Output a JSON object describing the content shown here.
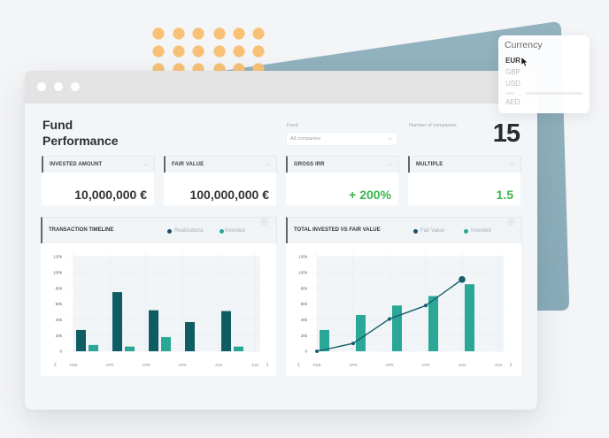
{
  "window": {
    "control_dots": 3
  },
  "header": {
    "title_line1": "Fund",
    "title_line2": "Performance"
  },
  "fund_filter": {
    "label": "Fund",
    "value": "All companies"
  },
  "companies": {
    "label": "Number of companies",
    "count": "15"
  },
  "kpis": [
    {
      "label": "INVESTED AMOUNT",
      "value": "10,000,000 €",
      "value_color": "#333333"
    },
    {
      "label": "FAIR VALUE",
      "value": "100,000,000 €",
      "value_color": "#333333"
    },
    {
      "label": "GROSS IRR",
      "value": "+ 200%",
      "value_color": "#3bb54a"
    },
    {
      "label": "MULTIPLE",
      "value": "1.5",
      "value_color": "#3bb54a"
    }
  ],
  "currency_menu": {
    "title": "Currency",
    "options": [
      {
        "label": "EUR",
        "selected": true
      },
      {
        "label": "GBP",
        "selected": false
      },
      {
        "label": "USD",
        "selected": false
      },
      {
        "label": "AED",
        "selected": false
      }
    ]
  },
  "icons": {
    "window_controls": "circle-dots",
    "kpi_dropdown": "chevron-down-icon",
    "select_dropdown": "chevron-down-icon",
    "chart_settings": "gear-icon",
    "chart_prev": "chevron-left-icon",
    "chart_next": "chevron-right-icon",
    "cursor": "mouse-pointer-icon"
  },
  "colors": {
    "accent_dark_teal": "#0d5d63",
    "accent_teal": "#2ba797",
    "positive_green": "#3bb54a",
    "decor_orange": "#f8c176",
    "decor_blue": "#8fb0bd"
  },
  "chart_data": [
    {
      "type": "bar",
      "title": "TRANSACTION TIMELINE",
      "x_tick_labels": [
        "FEB",
        "APR",
        "APR",
        "APR",
        "JUN",
        "JUN"
      ],
      "y_ticks": [
        "0",
        "20k",
        "40k",
        "60k",
        "80k",
        "100k",
        "120k"
      ],
      "ylim": [
        0,
        120
      ],
      "unit": "k",
      "xlabel": "",
      "ylabel": "",
      "grid": true,
      "legend_position": "top-right",
      "series": [
        {
          "name": "Realizations",
          "type": "bar",
          "color": "#0d5d63",
          "legend_color": "#1d4f69",
          "values": [
            27,
            75,
            52,
            37,
            51
          ]
        },
        {
          "name": "Invested",
          "type": "bar",
          "color": "#2ba797",
          "legend_color": "#2ba797",
          "values": [
            8,
            6,
            18,
            0,
            6
          ]
        }
      ]
    },
    {
      "type": "bar",
      "title": "TOTAL INVESTED VS FAIR VALUE",
      "x_tick_labels": [
        "FEB",
        "APR",
        "APR",
        "APR",
        "JUN",
        "JUN"
      ],
      "y_ticks": [
        "0",
        "20k",
        "40k",
        "60k",
        "80k",
        "100k",
        "120k"
      ],
      "ylim": [
        0,
        120
      ],
      "unit": "k",
      "xlabel": "",
      "ylabel": "",
      "grid": true,
      "legend_position": "top-right",
      "series": [
        {
          "name": "Fair Value",
          "type": "line",
          "color": "#175e6b",
          "legend_color": "#1d4f69",
          "values": [
            0,
            10,
            41,
            58,
            91
          ]
        },
        {
          "name": "Invested",
          "type": "bar",
          "color": "#2ba797",
          "legend_color": "#2ba797",
          "values": [
            27,
            46,
            58,
            70,
            85
          ]
        }
      ]
    }
  ]
}
